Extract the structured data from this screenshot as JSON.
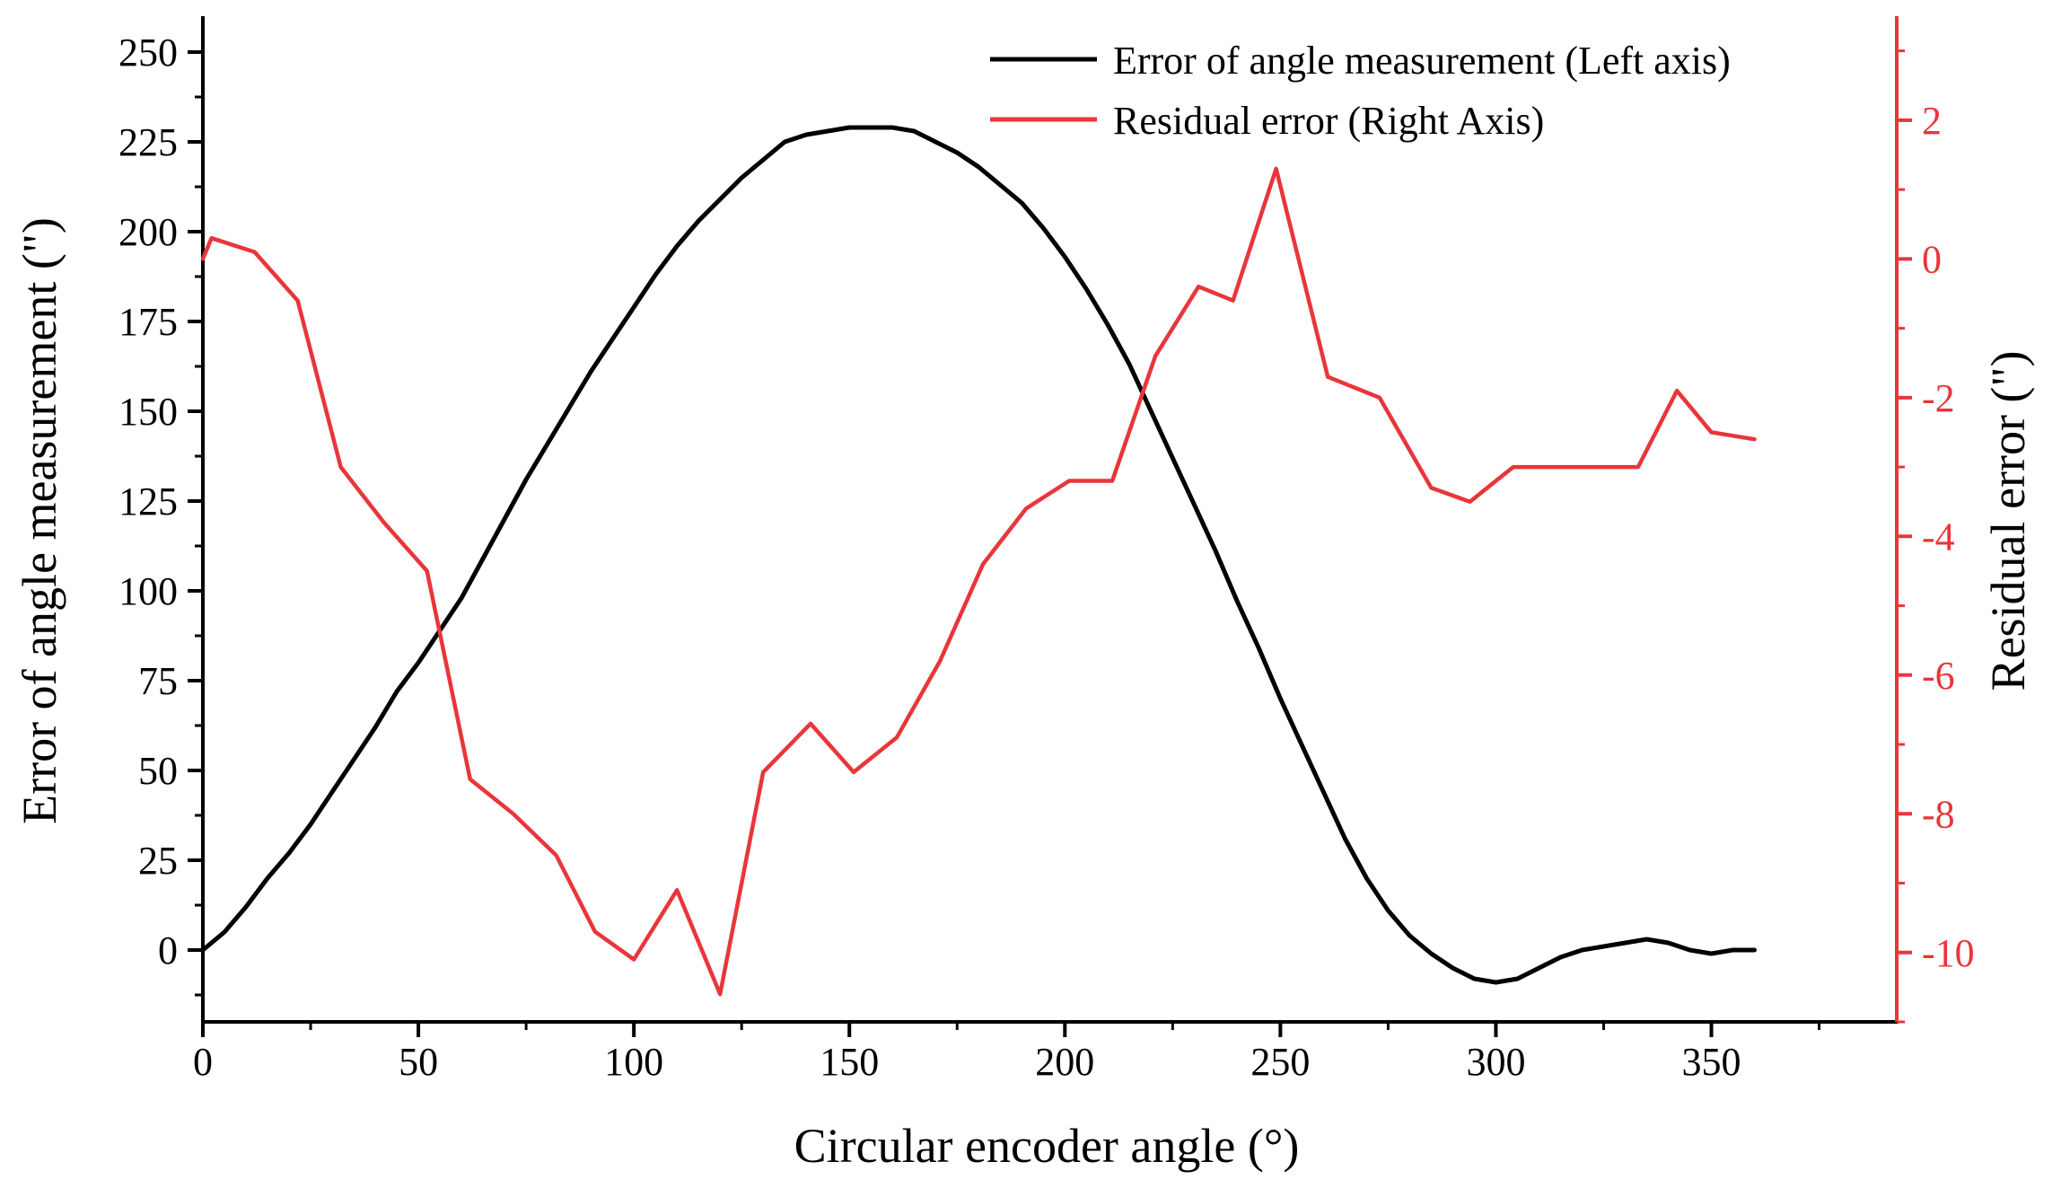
{
  "chart_data": {
    "type": "line",
    "xlabel": "Circular encoder angle (°)",
    "ylabel": "Error of angle measurement (\")",
    "y2label": "Residual error (\")",
    "xlim": [
      0,
      393
    ],
    "ylim": [
      -20,
      260
    ],
    "y2lim": [
      -11,
      3.5
    ],
    "xticks": [
      "0",
      "50",
      "100",
      "150",
      "200",
      "250",
      "300",
      "350"
    ],
    "yticks": [
      "0",
      "25",
      "50",
      "75",
      "100",
      "125",
      "150",
      "175",
      "200",
      "225",
      "250"
    ],
    "y2ticks": [
      "-10",
      "-8",
      "-6",
      "-4",
      "-2",
      "0",
      "2"
    ],
    "legend_position": "top-right",
    "colors": {
      "left_axis": "#000000",
      "right_axis": "#e8363a"
    },
    "series": [
      {
        "name": "Error of angle measurement (Left axis)",
        "axis": "left",
        "color": "#000000",
        "x": [
          0,
          5,
          10,
          15,
          20,
          25,
          30,
          35,
          40,
          45,
          50,
          55,
          60,
          65,
          70,
          75,
          80,
          85,
          90,
          95,
          100,
          105,
          110,
          115,
          120,
          125,
          130,
          135,
          140,
          145,
          150,
          155,
          160,
          165,
          170,
          175,
          180,
          185,
          190,
          195,
          200,
          205,
          210,
          215,
          220,
          225,
          230,
          235,
          240,
          245,
          250,
          255,
          260,
          265,
          270,
          275,
          280,
          285,
          290,
          295,
          300,
          305,
          310,
          315,
          320,
          325,
          330,
          335,
          340,
          345,
          350,
          355,
          360
        ],
        "values": [
          0,
          5,
          12,
          20,
          27,
          35,
          44,
          53,
          62,
          72,
          80,
          89,
          98,
          109,
          120,
          131,
          141,
          151,
          161,
          170,
          179,
          188,
          196,
          203,
          209,
          215,
          220,
          225,
          227,
          228,
          229,
          229,
          229,
          228,
          225,
          222,
          218,
          213,
          208,
          201,
          193,
          184,
          174,
          163,
          150,
          137,
          124,
          111,
          97,
          84,
          70,
          57,
          44,
          31,
          20,
          11,
          4,
          -1,
          -5,
          -8,
          -9,
          -8,
          -5,
          -2,
          0,
          1,
          2,
          3,
          2,
          0,
          -1,
          0,
          0
        ]
      },
      {
        "name": "Residual error (Right Axis)",
        "axis": "right",
        "color": "#e8363a",
        "x": [
          0,
          2,
          12,
          22,
          32,
          42,
          52,
          62,
          72,
          82,
          91,
          100,
          110,
          120,
          130,
          141,
          151,
          161,
          171,
          181,
          191,
          201,
          211,
          221,
          231,
          239,
          249,
          261,
          273,
          285,
          294,
          304,
          314,
          324,
          333,
          342,
          350,
          360
        ],
        "values": [
          0,
          0.3,
          0.1,
          -0.6,
          -3.0,
          -3.8,
          -4.5,
          -7.5,
          -8.0,
          -8.6,
          -9.7,
          -10.1,
          -9.1,
          -10.6,
          -7.4,
          -6.7,
          -7.4,
          -6.9,
          -5.8,
          -4.4,
          -3.6,
          -3.2,
          -3.2,
          -1.4,
          -0.4,
          -0.6,
          1.3,
          -1.7,
          -2.0,
          -3.3,
          -3.5,
          -3.0,
          -3.0,
          -3.0,
          -3.0,
          -1.9,
          -2.5,
          -2.6
        ]
      }
    ]
  }
}
